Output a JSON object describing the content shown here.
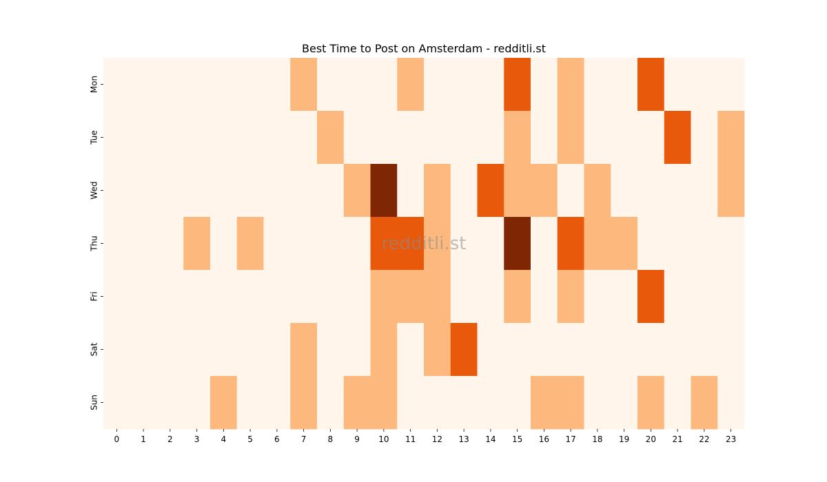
{
  "chart_data": {
    "type": "heatmap",
    "title": "Best Time to Post on Amsterdam - redditli.st",
    "watermark": "redditli.st",
    "xlabel": "",
    "ylabel": "",
    "x_categories": [
      "0",
      "1",
      "2",
      "3",
      "4",
      "5",
      "6",
      "7",
      "8",
      "9",
      "10",
      "11",
      "12",
      "13",
      "14",
      "15",
      "16",
      "17",
      "18",
      "19",
      "20",
      "21",
      "22",
      "23"
    ],
    "y_categories": [
      "Mon",
      "Tue",
      "Wed",
      "Thu",
      "Fri",
      "Sat",
      "Sun"
    ],
    "values": [
      [
        0,
        0,
        0,
        0,
        0,
        0,
        0,
        1,
        0,
        0,
        0,
        1,
        0,
        0,
        0,
        2,
        0,
        1,
        0,
        0,
        2,
        0,
        0,
        0
      ],
      [
        0,
        0,
        0,
        0,
        0,
        0,
        0,
        0,
        1,
        0,
        0,
        0,
        0,
        0,
        0,
        1,
        0,
        1,
        0,
        0,
        0,
        2,
        0,
        1
      ],
      [
        0,
        0,
        0,
        0,
        0,
        0,
        0,
        0,
        0,
        1,
        3,
        0,
        1,
        0,
        2,
        1,
        1,
        0,
        1,
        0,
        0,
        0,
        0,
        1
      ],
      [
        0,
        0,
        0,
        1,
        0,
        1,
        0,
        0,
        0,
        0,
        2,
        2,
        1,
        0,
        0,
        3,
        0,
        2,
        1,
        1,
        0,
        0,
        0,
        0
      ],
      [
        0,
        0,
        0,
        0,
        0,
        0,
        0,
        0,
        0,
        0,
        1,
        1,
        1,
        0,
        0,
        1,
        0,
        1,
        0,
        0,
        2,
        0,
        0,
        0
      ],
      [
        0,
        0,
        0,
        0,
        0,
        0,
        0,
        1,
        0,
        0,
        1,
        0,
        1,
        2,
        0,
        0,
        0,
        0,
        0,
        0,
        0,
        0,
        0,
        0
      ],
      [
        0,
        0,
        0,
        0,
        1,
        0,
        0,
        1,
        0,
        1,
        1,
        0,
        0,
        0,
        0,
        0,
        1,
        1,
        0,
        0,
        1,
        0,
        1,
        0
      ]
    ],
    "colormap": [
      "#fff5eb",
      "#fdb97d",
      "#e8590c",
      "#7f2704"
    ],
    "grid": false,
    "legend": "none"
  }
}
